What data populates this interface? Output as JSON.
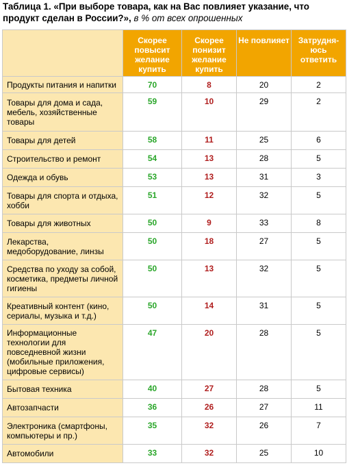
{
  "title": {
    "bold": "Таблица 1. «При выборе товара, как на Вас повлияет указание, что продукт сделан в России?»,",
    "italic": " в % от всех опрошенных"
  },
  "headers": [
    "Скорее повысит желание купить",
    "Скорее понизит желание купить",
    "Не повлияет",
    "Затрудня-юсь ответить"
  ],
  "rows": [
    {
      "label": "Продукты питания и напитки",
      "up": "70",
      "down": "8",
      "none": "20",
      "unsure": "2"
    },
    {
      "label": "Товары для дома и сада, мебель, хозяйственные товары",
      "up": "59",
      "down": "10",
      "none": "29",
      "unsure": "2"
    },
    {
      "label": "Товары для детей",
      "up": "58",
      "down": "11",
      "none": "25",
      "unsure": "6"
    },
    {
      "label": "Строительство и ремонт",
      "up": "54",
      "down": "13",
      "none": "28",
      "unsure": "5"
    },
    {
      "label": "Одежда и обувь",
      "up": "53",
      "down": "13",
      "none": "31",
      "unsure": "3"
    },
    {
      "label": "Товары для спорта и отдыха, хобби",
      "up": "51",
      "down": "12",
      "none": "32",
      "unsure": "5"
    },
    {
      "label": "Товары для животных",
      "up": "50",
      "down": "9",
      "none": "33",
      "unsure": "8"
    },
    {
      "label": "Лекарства, медоборудование, линзы",
      "up": "50",
      "down": "18",
      "none": "27",
      "unsure": "5"
    },
    {
      "label": "Средства по уходу за собой, косметика, предметы личной гигиены",
      "up": "50",
      "down": "13",
      "none": "32",
      "unsure": "5"
    },
    {
      "label": "Креативный контент (кино, сериалы, музыка и т.д.)",
      "up": "50",
      "down": "14",
      "none": "31",
      "unsure": "5"
    },
    {
      "label": "Информационные технологии для повседневной жизни (мобильные приложения, цифровые сервисы)",
      "up": "47",
      "down": "20",
      "none": "28",
      "unsure": "5"
    },
    {
      "label": "Бытовая техника",
      "up": "40",
      "down": "27",
      "none": "28",
      "unsure": "5"
    },
    {
      "label": "Автозапчасти",
      "up": "36",
      "down": "26",
      "none": "27",
      "unsure": "11"
    },
    {
      "label": "Электроника (смартфоны, компьютеры и пр.)",
      "up": "35",
      "down": "32",
      "none": "26",
      "unsure": "7"
    },
    {
      "label": "Автомобили",
      "up": "33",
      "down": "32",
      "none": "25",
      "unsure": "10"
    }
  ]
}
